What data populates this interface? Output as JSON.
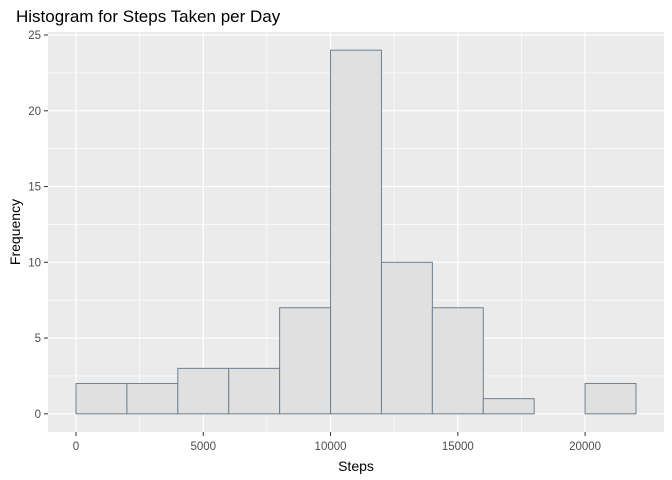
{
  "chart_data": {
    "type": "bar",
    "title": "Histogram for Steps Taken per Day",
    "xlabel": "Steps",
    "ylabel": "Frequency",
    "bin_edges": [
      0,
      2000,
      4000,
      6000,
      8000,
      10000,
      12000,
      14000,
      16000,
      18000,
      20000,
      22000
    ],
    "values": [
      2,
      2,
      3,
      3,
      7,
      24,
      10,
      7,
      1,
      0,
      2
    ],
    "xlim": [
      -1100,
      23100
    ],
    "ylim": [
      -1.2,
      25.2
    ],
    "x_ticks": [
      0,
      5000,
      10000,
      15000,
      20000
    ],
    "x_tick_labels": [
      "0",
      "5000",
      "10000",
      "15000",
      "20000"
    ],
    "y_ticks": [
      0,
      5,
      10,
      15,
      20,
      25
    ],
    "y_tick_labels": [
      "0",
      "5",
      "10",
      "15",
      "20",
      "25"
    ],
    "grid": true,
    "colors": {
      "panel_background": "#ebebeb",
      "grid_major": "#ffffff",
      "bar_fill": "#e0e0e0",
      "bar_outline": "#708090",
      "tick_text": "#4d4d4d",
      "tick_mark": "#333333"
    }
  }
}
